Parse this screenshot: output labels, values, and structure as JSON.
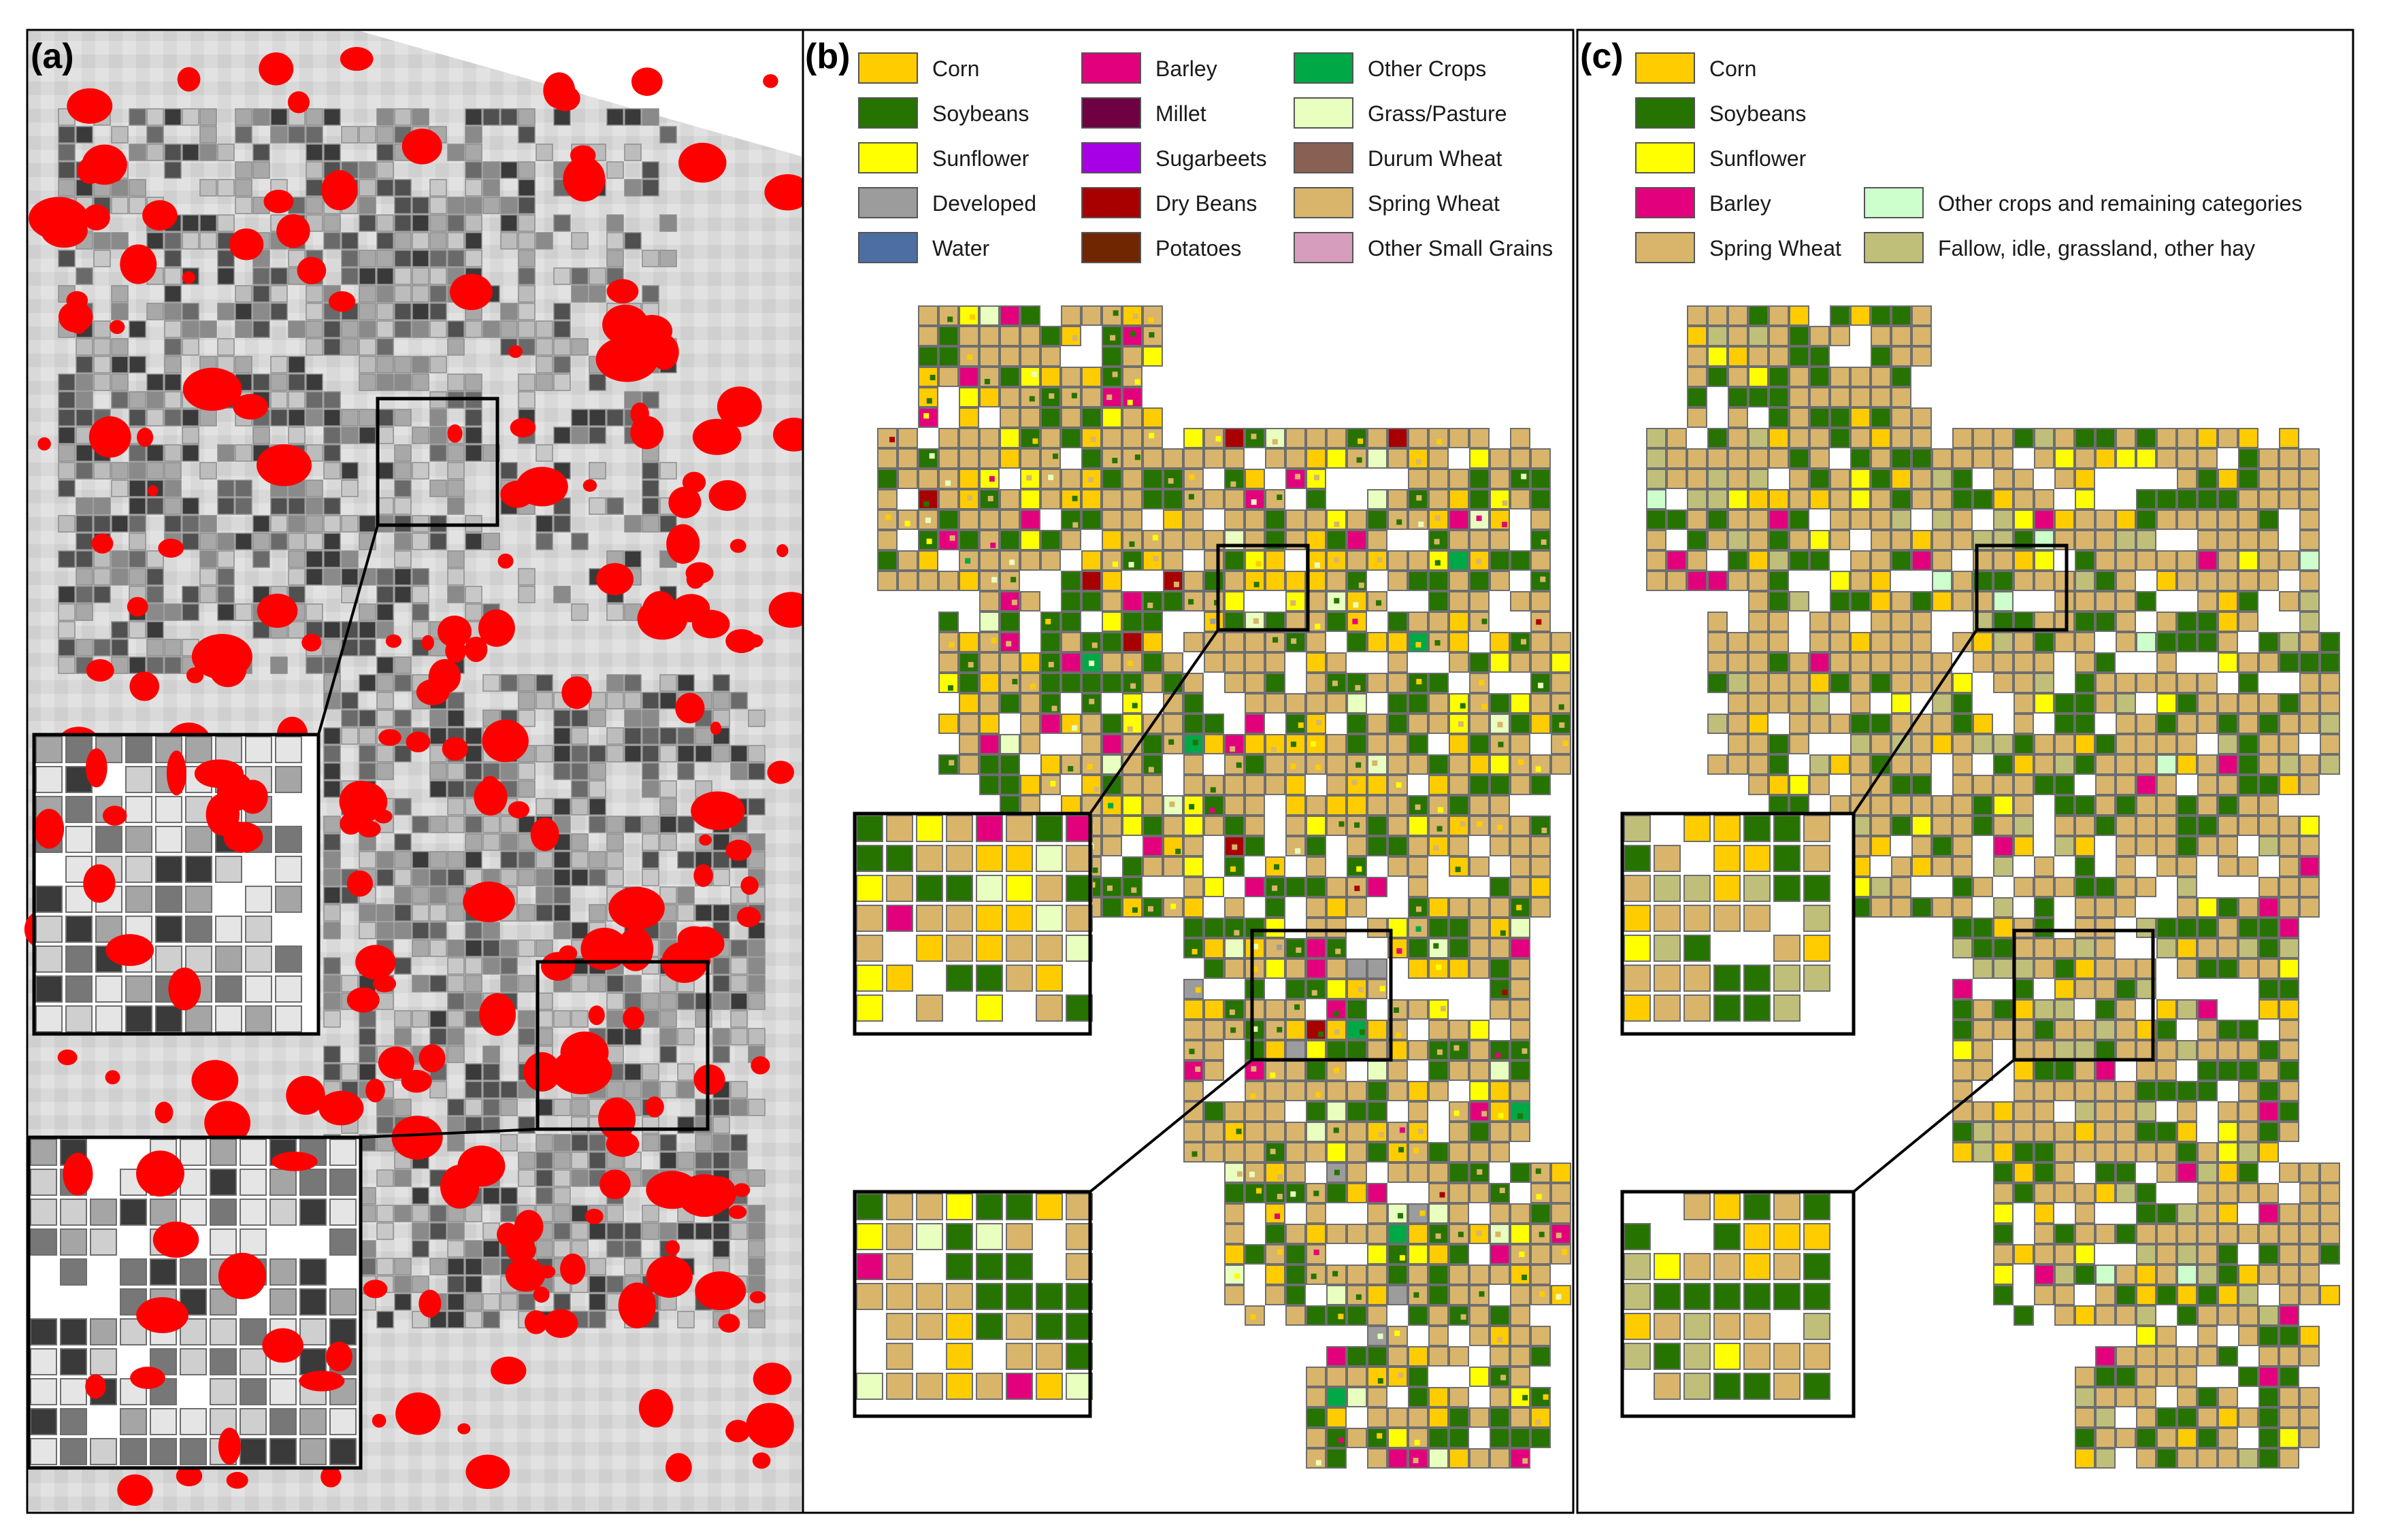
{
  "figure": {
    "panels": [
      {
        "id": "a",
        "label": "(a)",
        "description_type": "grayscale satellite image with red cloud masks and field boundaries",
        "insets": 2
      },
      {
        "id": "b",
        "label": "(b)",
        "insets": 2,
        "legend": [
          {
            "label": "Corn",
            "color": "#FFCC00"
          },
          {
            "label": "Soybeans",
            "color": "#267300"
          },
          {
            "label": "Sunflower",
            "color": "#FFFF00"
          },
          {
            "label": "Developed",
            "color": "#9C9C9C"
          },
          {
            "label": "Water",
            "color": "#4D6EA3"
          },
          {
            "label": "Barley",
            "color": "#E2007C"
          },
          {
            "label": "Millet",
            "color": "#6F0042"
          },
          {
            "label": "Sugarbeets",
            "color": "#A800E6"
          },
          {
            "label": "Dry Beans",
            "color": "#A80000"
          },
          {
            "label": "Potatoes",
            "color": "#702600"
          },
          {
            "label": "Other Crops",
            "color": "#00A846"
          },
          {
            "label": "Grass/Pasture",
            "color": "#E8FFBF"
          },
          {
            "label": "Durum Wheat",
            "color": "#896054"
          },
          {
            "label": "Spring Wheat",
            "color": "#D8B56B"
          },
          {
            "label": "Other Small Grains",
            "color": "#D69EBC"
          }
        ]
      },
      {
        "id": "c",
        "label": "(c)",
        "insets": 2,
        "legend": [
          {
            "label": "Corn",
            "color": "#FFCC00"
          },
          {
            "label": "Soybeans",
            "color": "#267300"
          },
          {
            "label": "Sunflower",
            "color": "#FFFF00"
          },
          {
            "label": "Barley",
            "color": "#E2007C"
          },
          {
            "label": "Spring Wheat",
            "color": "#D8B56B"
          },
          {
            "label": "Other crops and remaining categories",
            "color": "#CCFFCC"
          },
          {
            "label": "Fallow, idle, grassland, other hay",
            "color": "#BFBF7A"
          }
        ]
      }
    ],
    "colors": {
      "cloud": "#FF0000",
      "field_outline": "#6e6e6e",
      "inset_border": "#000000"
    }
  }
}
